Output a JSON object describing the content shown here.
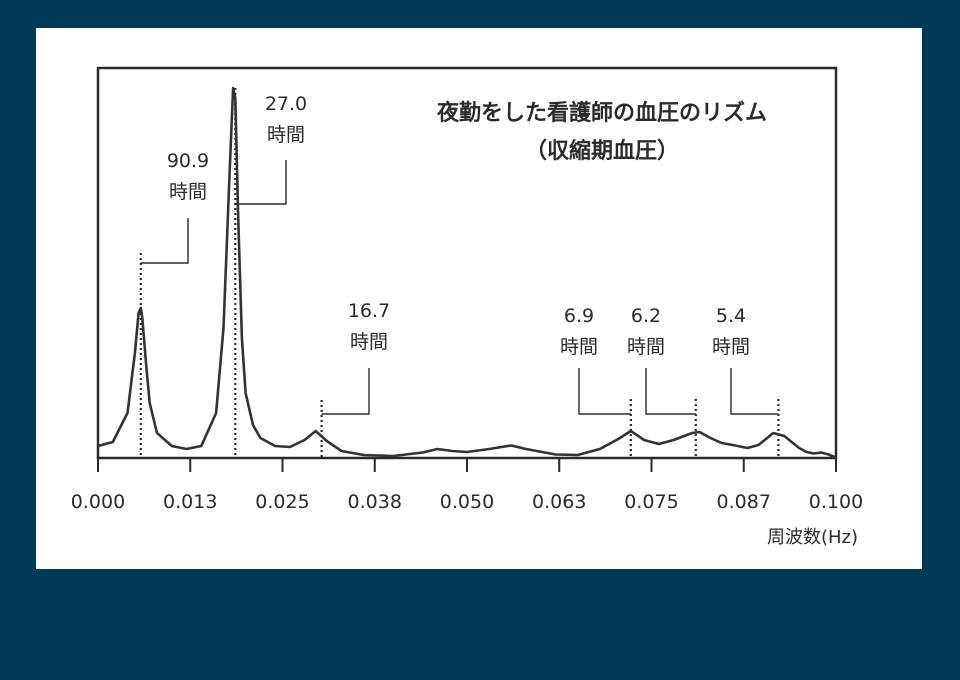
{
  "chart_data": {
    "type": "line",
    "title": "夜勤をした看護師の血圧のリズム",
    "subtitle": "（収縮期血圧）",
    "xlabel": "周波数(Hz)",
    "ylabel": "",
    "xlim": [
      0.0,
      0.1
    ],
    "x_ticks": [
      "0.000",
      "0.013",
      "0.025",
      "0.038",
      "0.050",
      "0.063",
      "0.075",
      "0.087",
      "0.100"
    ],
    "grid": false,
    "series": [
      {
        "x": [
          0.0,
          0.002,
          0.004,
          0.005,
          0.0055,
          0.0058,
          0.006,
          0.0065,
          0.007,
          0.008,
          0.01,
          0.012,
          0.014,
          0.016,
          0.017,
          0.0178,
          0.0183,
          0.0186,
          0.019,
          0.0195,
          0.02,
          0.021,
          0.022,
          0.024,
          0.026,
          0.028,
          0.0295,
          0.031,
          0.033,
          0.036,
          0.04,
          0.044,
          0.046,
          0.048,
          0.05,
          0.053,
          0.056,
          0.058,
          0.062,
          0.065,
          0.068,
          0.0705,
          0.0722,
          0.074,
          0.076,
          0.078,
          0.0805,
          0.0815,
          0.083,
          0.0845,
          0.086,
          0.088,
          0.0895,
          0.0915,
          0.093,
          0.095,
          0.096,
          0.097,
          0.098,
          0.099,
          0.1
        ],
        "values": [
          1.2,
          1.6,
          4.5,
          10.5,
          14.5,
          15.0,
          14.0,
          9.5,
          5.5,
          2.5,
          1.2,
          0.9,
          1.2,
          4.5,
          13.0,
          28.0,
          37.0,
          36.0,
          24.0,
          12.0,
          6.5,
          3.3,
          2.0,
          1.2,
          1.1,
          1.8,
          2.7,
          1.7,
          0.7,
          0.3,
          0.2,
          0.55,
          0.9,
          0.7,
          0.6,
          0.9,
          1.25,
          0.9,
          0.35,
          0.3,
          0.9,
          1.9,
          2.7,
          1.8,
          1.4,
          1.8,
          2.5,
          2.6,
          2.0,
          1.5,
          1.3,
          1.0,
          1.3,
          2.5,
          2.2,
          1.0,
          0.6,
          0.45,
          0.55,
          0.35,
          0.05
        ]
      }
    ],
    "peaks": [
      {
        "x": 0.0058,
        "value": 15.0,
        "dot_top": 20.5,
        "label_line1": "90.9",
        "label_line2": "時間"
      },
      {
        "x": 0.0186,
        "value": 36.0,
        "dot_top": 37.0,
        "label_line1": "27.0",
        "label_line2": "時間"
      },
      {
        "x": 0.0303,
        "value": 2.7,
        "dot_top": 5.8,
        "label_line1": "16.7",
        "label_line2": "時間"
      },
      {
        "x": 0.0722,
        "value": 2.7,
        "dot_top": 5.9,
        "label_line1": "6.9",
        "label_line2": "時間"
      },
      {
        "x": 0.081,
        "value": 2.6,
        "dot_top": 5.9,
        "label_line1": "6.2",
        "label_line2": "時間"
      },
      {
        "x": 0.0922,
        "value": 2.5,
        "dot_top": 5.9,
        "label_line1": "5.4",
        "label_line2": "時間"
      }
    ]
  },
  "colors": {
    "background": "#003a57",
    "panel": "#ffffff",
    "ink": "#2b2b2b"
  }
}
